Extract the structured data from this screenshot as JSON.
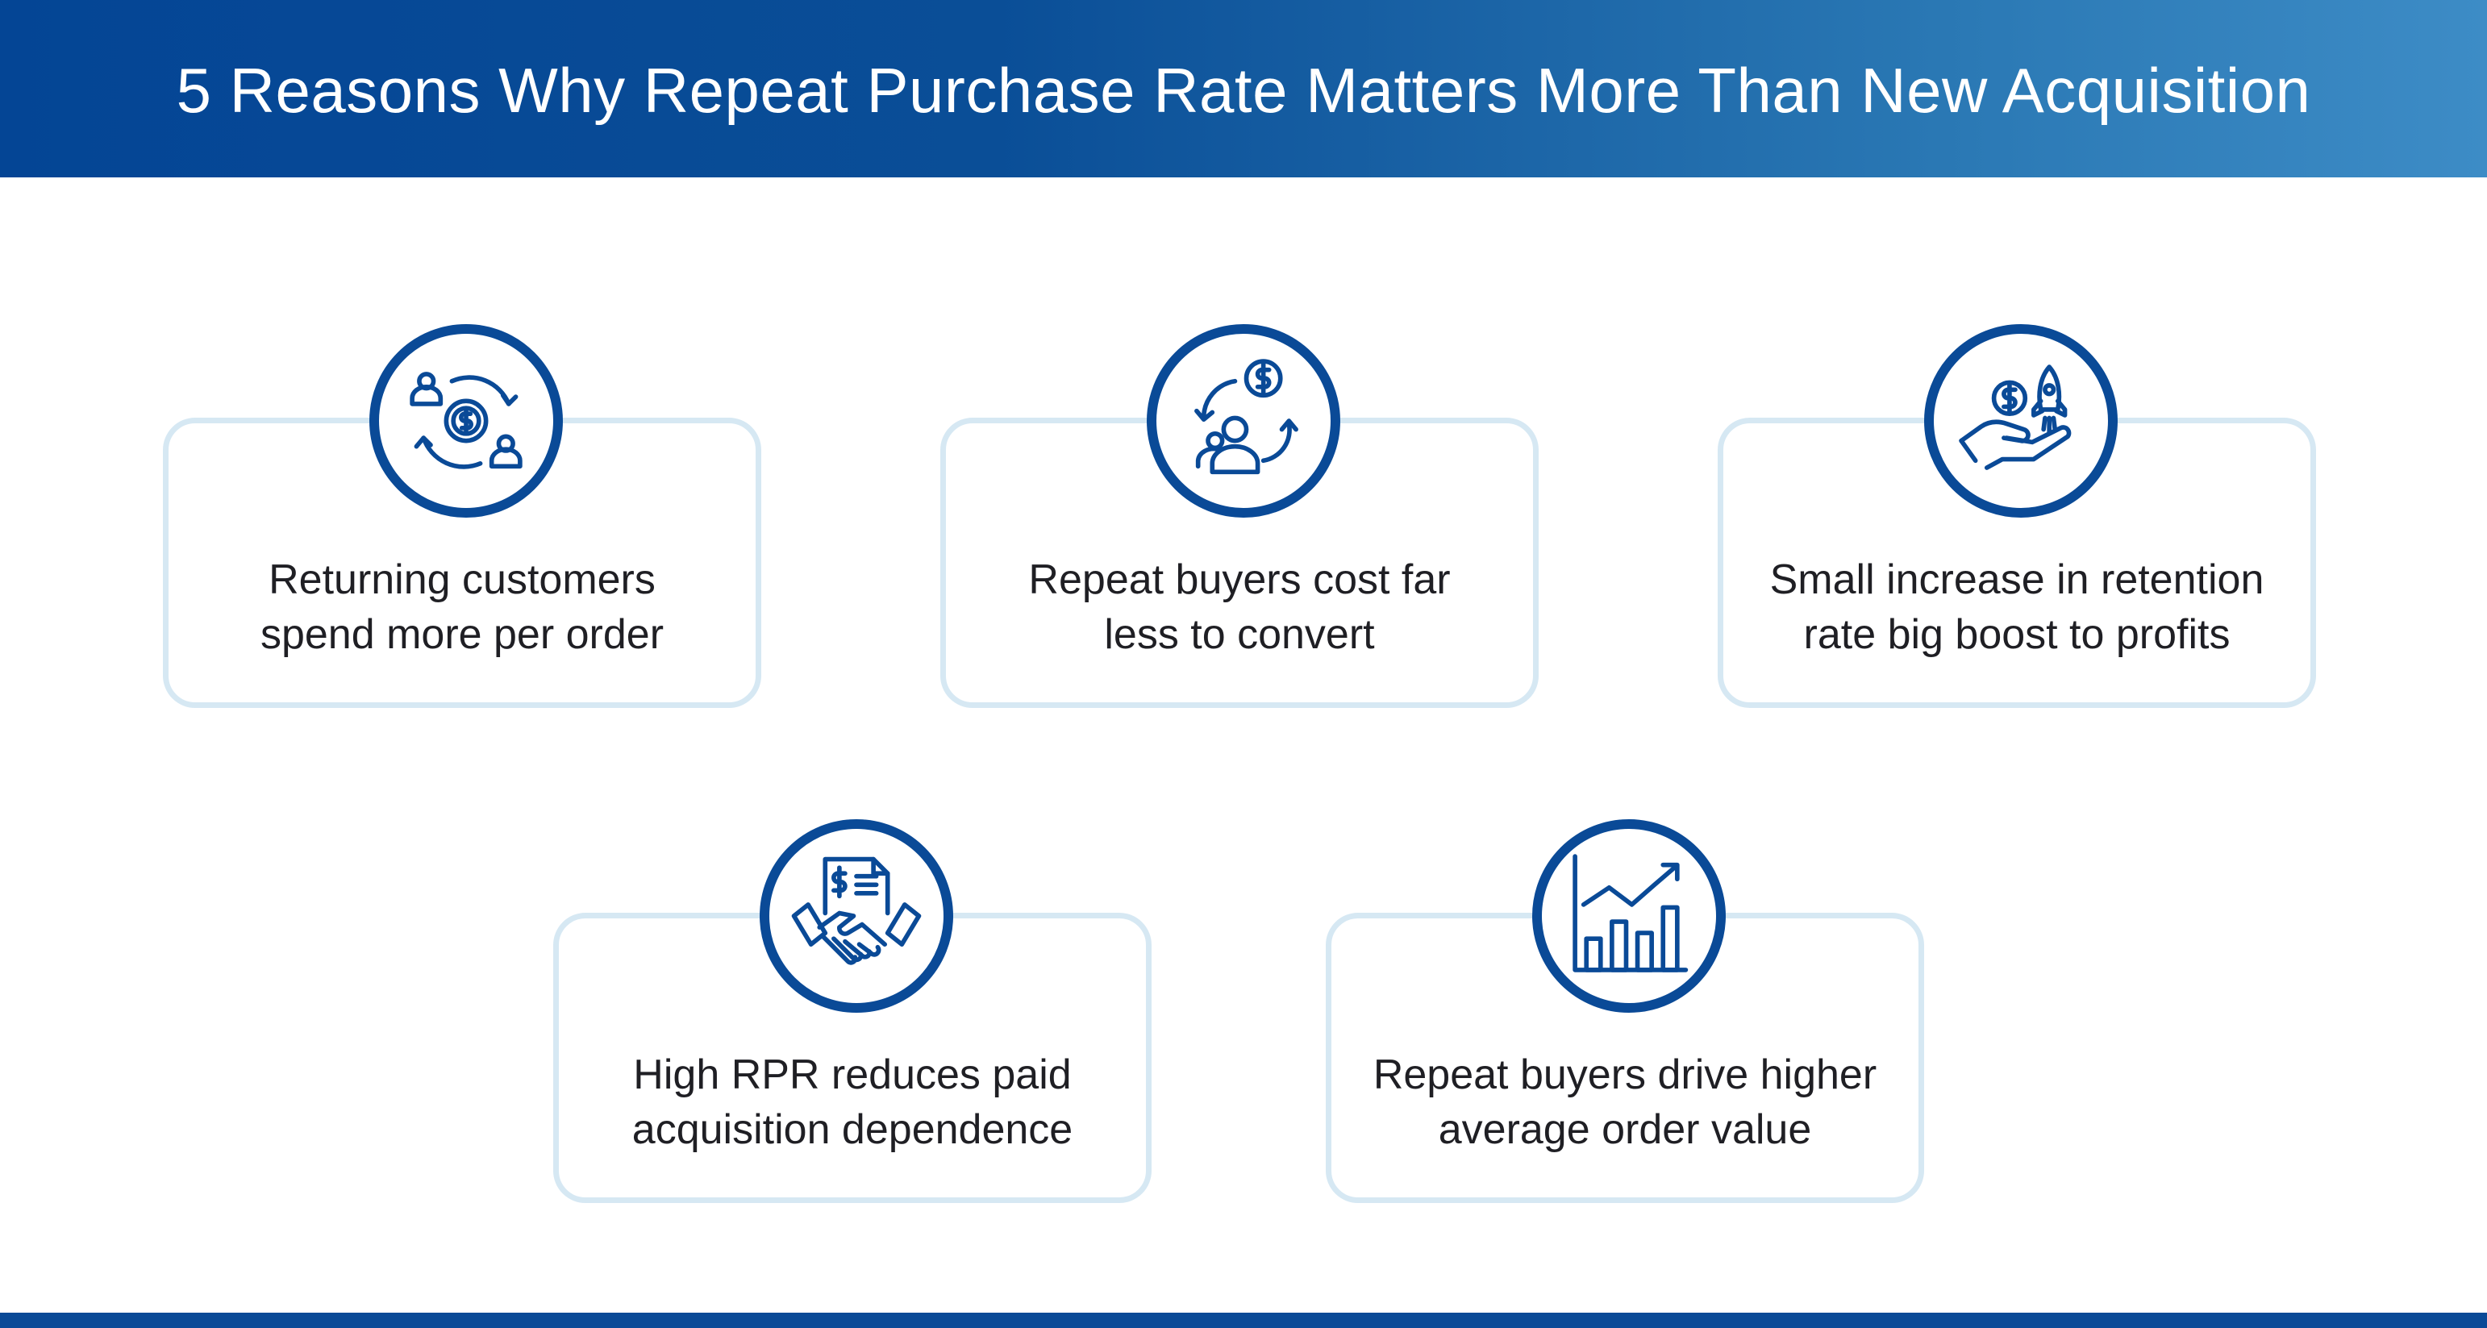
{
  "header": {
    "title": "5 Reasons Why Repeat Purchase Rate Matters More Than New Acquisition"
  },
  "colors": {
    "primary": "#0a4a97",
    "card_border": "#d6e8f3",
    "text": "#1f1f24"
  },
  "reasons": [
    {
      "icon": "customer-cycle-dollar-icon",
      "text": "Returning customers\nspend more per order"
    },
    {
      "icon": "buyer-dollar-loop-icon",
      "text": "Repeat buyers cost far\nless to convert"
    },
    {
      "icon": "hand-coin-rocket-icon",
      "text": "Small increase in retention\nrate  big boost to profits"
    },
    {
      "icon": "handshake-invoice-icon",
      "text": "High RPR reduces paid\nacquisition dependence"
    },
    {
      "icon": "growth-bar-chart-icon",
      "text": "Repeat buyers drive higher\naverage order value"
    }
  ]
}
